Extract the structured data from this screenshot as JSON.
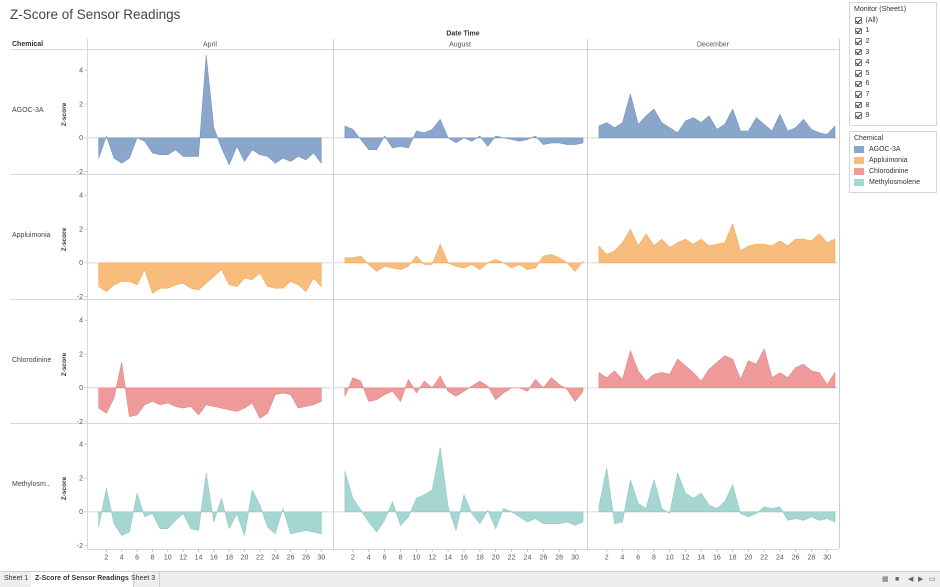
{
  "title": "Z-Score of Sensor Readings",
  "monitor_filter": {
    "title": "Monitor (Sheet1)",
    "options": [
      "(All)",
      "1",
      "2",
      "3",
      "4",
      "5",
      "6",
      "7",
      "8",
      "9"
    ]
  },
  "chemical_legend": {
    "title": "Chemical",
    "items": [
      {
        "name": "AGOC-3A",
        "color": "#8aa7cb"
      },
      {
        "name": "Appluimonia",
        "color": "#f8bc7c"
      },
      {
        "name": "Chlorodinine",
        "color": "#ee9a9a"
      },
      {
        "name": "Methylosmolene",
        "color": "#a6d6d2"
      }
    ]
  },
  "tabs": [
    {
      "label": "Sheet 1",
      "active": false
    },
    {
      "label": "Z-Score of Sensor Readings",
      "active": true
    },
    {
      "label": "Sheet 3",
      "active": false
    }
  ],
  "chart_data": {
    "type": "area",
    "column_header": "Date Time",
    "row_header": "Chemical",
    "ylabel": "Z-score",
    "ylim": [
      -2.2,
      5.2
    ],
    "yticks": [
      -2,
      0,
      2,
      4
    ],
    "xlim": [
      0,
      31
    ],
    "xticks": [
      2,
      4,
      6,
      8,
      10,
      12,
      14,
      16,
      18,
      20,
      22,
      24,
      26,
      28,
      30
    ],
    "months": [
      "April",
      "August",
      "December"
    ],
    "chemicals": [
      {
        "name": "AGOC-3A",
        "label": "AGOC-3A",
        "color": "#8aa7cb",
        "stroke": "#7595bf",
        "series": [
          {
            "month": "April",
            "x": [
              1,
              2,
              3,
              4,
              5,
              6,
              7,
              8,
              9,
              10,
              11,
              12,
              13,
              14,
              15,
              16,
              17,
              18,
              19,
              20,
              21,
              22,
              23,
              24,
              25,
              26,
              27,
              28,
              29,
              30
            ],
            "y": [
              -1.2,
              0.1,
              -1.2,
              -1.5,
              -1.2,
              0.0,
              -0.2,
              -0.9,
              -1.0,
              -1.0,
              -0.7,
              -1.1,
              -1.1,
              -1.1,
              4.9,
              0.6,
              -0.6,
              -1.6,
              -0.5,
              -1.4,
              -0.7,
              -1.0,
              -1.1,
              -1.5,
              -1.2,
              -1.4,
              -1.1,
              -1.3,
              -0.9,
              -1.5
            ]
          },
          {
            "month": "August",
            "x": [
              1,
              2,
              3,
              4,
              5,
              6,
              7,
              8,
              9,
              10,
              11,
              12,
              13,
              14,
              15,
              16,
              17,
              18,
              19,
              20,
              21,
              22,
              23,
              24,
              25,
              26,
              27,
              28,
              29,
              30,
              31
            ],
            "y": [
              0.7,
              0.5,
              -0.1,
              -0.7,
              -0.7,
              0.1,
              -0.6,
              -0.5,
              -0.6,
              0.4,
              0.3,
              0.5,
              1.1,
              0.0,
              -0.3,
              0.0,
              -0.2,
              0.1,
              -0.5,
              0.1,
              0.0,
              -0.1,
              -0.2,
              -0.1,
              0.1,
              -0.4,
              -0.3,
              -0.3,
              -0.4,
              -0.4,
              -0.3
            ]
          },
          {
            "month": "December",
            "x": [
              1,
              2,
              3,
              4,
              5,
              6,
              7,
              8,
              9,
              10,
              11,
              12,
              13,
              14,
              15,
              16,
              17,
              18,
              19,
              20,
              21,
              22,
              23,
              24,
              25,
              26,
              27,
              28,
              29,
              30,
              31
            ],
            "y": [
              0.7,
              0.9,
              0.6,
              0.9,
              2.6,
              0.8,
              1.3,
              1.7,
              0.9,
              0.6,
              0.3,
              1.0,
              1.2,
              0.9,
              1.3,
              0.5,
              0.8,
              1.7,
              0.4,
              0.4,
              1.2,
              0.8,
              0.4,
              1.4,
              0.4,
              0.6,
              1.1,
              0.5,
              0.3,
              0.2,
              0.7
            ]
          }
        ]
      },
      {
        "name": "Appluimonia",
        "label": "Appluimonia",
        "color": "#f8bc7c",
        "stroke": "#f2a85c",
        "series": [
          {
            "month": "April",
            "x": [
              1,
              2,
              3,
              4,
              5,
              6,
              7,
              8,
              9,
              10,
              11,
              12,
              13,
              14,
              15,
              16,
              17,
              18,
              19,
              20,
              21,
              22,
              23,
              24,
              25,
              26,
              27,
              28,
              29,
              30
            ],
            "y": [
              -1.4,
              -1.7,
              -1.3,
              -1.1,
              -1.1,
              -1.3,
              -0.4,
              -1.8,
              -1.5,
              -1.5,
              -1.3,
              -1.2,
              -1.5,
              -1.6,
              -1.2,
              -0.8,
              -0.4,
              -1.3,
              -1.4,
              -0.9,
              -1.0,
              -0.6,
              -1.4,
              -1.5,
              -1.5,
              -1.1,
              -1.3,
              -1.7,
              -0.9,
              -1.4
            ]
          },
          {
            "month": "August",
            "x": [
              1,
              2,
              3,
              4,
              5,
              6,
              7,
              8,
              9,
              10,
              11,
              12,
              13,
              14,
              15,
              16,
              17,
              18,
              19,
              20,
              21,
              22,
              23,
              24,
              25,
              26,
              27,
              28,
              29,
              30,
              31
            ],
            "y": [
              0.3,
              0.3,
              0.4,
              -0.1,
              -0.5,
              -0.2,
              -0.3,
              -0.4,
              -0.2,
              0.4,
              -0.1,
              -0.1,
              1.1,
              0.0,
              -0.2,
              -0.3,
              -0.1,
              -0.4,
              0.0,
              0.2,
              0.0,
              -0.3,
              -0.1,
              -0.4,
              -0.3,
              0.4,
              0.5,
              0.3,
              0.0,
              -0.5,
              0.1
            ]
          },
          {
            "month": "December",
            "x": [
              1,
              2,
              3,
              4,
              5,
              6,
              7,
              8,
              9,
              10,
              11,
              12,
              13,
              14,
              15,
              16,
              17,
              18,
              19,
              20,
              21,
              22,
              23,
              24,
              25,
              26,
              27,
              28,
              29,
              30,
              31
            ],
            "y": [
              1.0,
              0.5,
              0.7,
              1.2,
              2.0,
              1.0,
              1.7,
              1.0,
              1.4,
              0.9,
              1.2,
              1.4,
              1.1,
              1.4,
              1.0,
              1.1,
              1.2,
              2.3,
              0.7,
              1.0,
              1.1,
              1.1,
              1.0,
              1.3,
              1.0,
              1.4,
              1.4,
              1.3,
              1.7,
              1.2,
              1.4
            ]
          }
        ]
      },
      {
        "name": "Chlorodinine",
        "label": "Chlorodinine",
        "color": "#ee9a9a",
        "stroke": "#e88383",
        "series": [
          {
            "month": "April",
            "x": [
              1,
              2,
              3,
              4,
              5,
              6,
              7,
              8,
              9,
              10,
              11,
              12,
              13,
              14,
              15,
              16,
              17,
              18,
              19,
              20,
              21,
              22,
              23,
              24,
              25,
              26,
              27,
              28,
              29,
              30
            ],
            "y": [
              -1.2,
              -1.5,
              -0.6,
              1.5,
              -1.7,
              -1.6,
              -1.0,
              -0.8,
              -1.0,
              -0.9,
              -1.1,
              -1.2,
              -1.1,
              -1.6,
              -1.0,
              -1.1,
              -1.2,
              -1.3,
              -1.4,
              -1.2,
              -0.9,
              -1.8,
              -1.5,
              -0.4,
              -0.3,
              -0.4,
              -1.2,
              -1.1,
              -1.0,
              -0.8
            ]
          },
          {
            "month": "August",
            "x": [
              1,
              2,
              3,
              4,
              5,
              6,
              7,
              8,
              9,
              10,
              11,
              12,
              13,
              14,
              15,
              16,
              17,
              18,
              19,
              20,
              21,
              22,
              23,
              24,
              25,
              26,
              27,
              28,
              29,
              30,
              31
            ],
            "y": [
              -0.5,
              0.6,
              0.4,
              -0.8,
              -0.7,
              -0.4,
              -0.2,
              -0.8,
              0.5,
              -0.3,
              0.4,
              0.0,
              0.7,
              -0.2,
              -0.5,
              -0.2,
              0.1,
              0.4,
              0.1,
              -0.7,
              -0.3,
              0.0,
              0.0,
              -0.2,
              0.5,
              0.0,
              0.6,
              0.2,
              -0.1,
              -0.8,
              -0.2
            ]
          },
          {
            "month": "December",
            "x": [
              1,
              2,
              3,
              4,
              5,
              6,
              7,
              8,
              9,
              10,
              11,
              12,
              13,
              14,
              15,
              16,
              17,
              18,
              19,
              20,
              21,
              22,
              23,
              24,
              25,
              26,
              27,
              28,
              29,
              30,
              31
            ],
            "y": [
              0.9,
              0.6,
              1.0,
              0.5,
              2.2,
              1.0,
              0.4,
              0.8,
              0.9,
              0.8,
              1.7,
              1.3,
              0.9,
              0.4,
              1.1,
              1.5,
              1.9,
              1.7,
              0.5,
              1.6,
              1.4,
              2.3,
              0.6,
              0.9,
              0.6,
              1.2,
              1.4,
              1.0,
              0.9,
              0.2,
              0.9
            ]
          }
        ]
      },
      {
        "name": "Methylosmolene",
        "label": "Methylosm..",
        "color": "#a6d6d2",
        "stroke": "#8dc8c3",
        "series": [
          {
            "month": "April",
            "x": [
              1,
              2,
              3,
              4,
              5,
              6,
              7,
              8,
              9,
              10,
              11,
              12,
              13,
              14,
              15,
              16,
              17,
              18,
              19,
              20,
              21,
              22,
              23,
              24,
              25,
              26,
              27,
              28,
              29,
              30
            ],
            "y": [
              -0.9,
              1.4,
              -0.7,
              -1.4,
              -1.2,
              1.1,
              -0.3,
              -0.1,
              -1.0,
              -1.0,
              -0.5,
              -0.1,
              -1.0,
              -1.1,
              2.3,
              -0.6,
              0.8,
              -1.0,
              -0.1,
              -1.4,
              1.3,
              0.4,
              -0.9,
              -1.3,
              0.2,
              -1.3,
              -1.2,
              -1.1,
              -1.2,
              -1.3
            ]
          },
          {
            "month": "August",
            "x": [
              1,
              2,
              3,
              4,
              5,
              6,
              7,
              8,
              9,
              10,
              11,
              12,
              13,
              14,
              15,
              16,
              17,
              18,
              19,
              20,
              21,
              22,
              23,
              24,
              25,
              26,
              27,
              28,
              29,
              30,
              31
            ],
            "y": [
              2.4,
              0.8,
              0.1,
              -0.6,
              -1.2,
              -0.5,
              0.6,
              -0.8,
              -0.3,
              0.8,
              1.0,
              1.3,
              3.8,
              0.3,
              -1.1,
              1.0,
              -0.1,
              -0.7,
              0.1,
              -1.0,
              0.2,
              0.0,
              -0.3,
              -0.6,
              -0.4,
              -0.7,
              -0.7,
              -0.7,
              -0.6,
              -0.8,
              -0.6
            ]
          },
          {
            "month": "December",
            "x": [
              1,
              2,
              3,
              4,
              5,
              6,
              7,
              8,
              9,
              10,
              11,
              12,
              13,
              14,
              15,
              16,
              17,
              18,
              19,
              20,
              21,
              22,
              23,
              24,
              25,
              26,
              27,
              28,
              29,
              30,
              31
            ],
            "y": [
              0.3,
              2.6,
              -0.7,
              -0.6,
              1.9,
              0.5,
              0.2,
              1.9,
              0.2,
              -0.1,
              2.3,
              1.1,
              0.8,
              1.1,
              0.4,
              0.2,
              0.6,
              1.6,
              -0.1,
              -0.3,
              -0.1,
              0.3,
              0.2,
              0.3,
              -0.5,
              -0.4,
              -0.5,
              -0.3,
              -0.5,
              -0.4,
              -0.6
            ]
          }
        ]
      }
    ]
  }
}
